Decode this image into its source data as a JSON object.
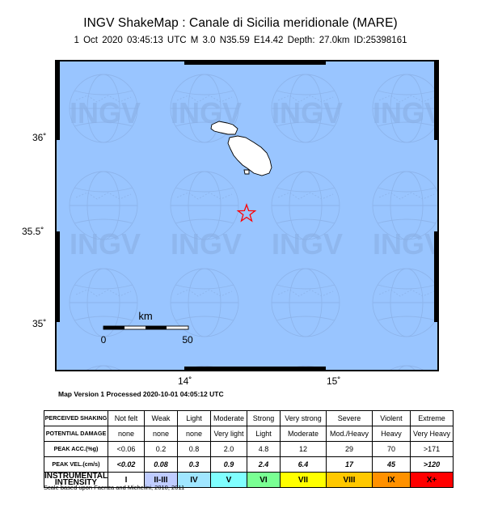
{
  "header": {
    "title": "INGV ShakeMap : Canale di Sicilia meridionale (MARE)",
    "subtitle": "1 Oct 2020 03:45:13 UTC   M 3.0   N35.59 E14.42   Depth: 27.0km   ID:25398161"
  },
  "map": {
    "watermark": "INGV",
    "y_ticks": [
      "36˚",
      "35.5˚",
      "35˚"
    ],
    "x_ticks": [
      "14˚",
      "15˚"
    ],
    "scale_title": "km",
    "scale_start": "0",
    "scale_end": "50",
    "colors": {
      "sea": "#99c5ff",
      "land": "#ffffff",
      "epicenter": "#ff0000",
      "frame": "#000000"
    },
    "epicenter_marker": "star-icon"
  },
  "version_line": "Map Version 1 Processed 2020-10-01 04:05:12 UTC",
  "legend": {
    "row_headers": [
      "PERCEIVED SHAKING",
      "POTENTIAL DAMAGE",
      "PEAK ACC.(%g)",
      "PEAK VEL.(cm/s)",
      "INSTRUMENTAL INTENSITY"
    ],
    "shaking": [
      "Not felt",
      "Weak",
      "Light",
      "Moderate",
      "Strong",
      "Very strong",
      "Severe",
      "Violent",
      "Extreme"
    ],
    "damage": [
      "none",
      "none",
      "none",
      "Very light",
      "Light",
      "Moderate",
      "Mod./Heavy",
      "Heavy",
      "Very Heavy"
    ],
    "acc": [
      "<0.06",
      "0.2",
      "0.8",
      "2.0",
      "4.8",
      "12",
      "29",
      "70",
      ">171"
    ],
    "vel": [
      "<0.02",
      "0.08",
      "0.3",
      "0.9",
      "2.4",
      "6.4",
      "17",
      "45",
      ">120"
    ],
    "intensity": [
      "I",
      "II-III",
      "IV",
      "V",
      "VI",
      "VII",
      "VIII",
      "IX",
      "X+"
    ],
    "intensity_colors": [
      "#ffffff",
      "#bfccff",
      "#a0e6ff",
      "#80ffff",
      "#7aff93",
      "#ffff00",
      "#ffc800",
      "#ff9100",
      "#ff0000"
    ]
  },
  "credit": "Scale based upon Faenza and Michelini, 2010, 2011"
}
